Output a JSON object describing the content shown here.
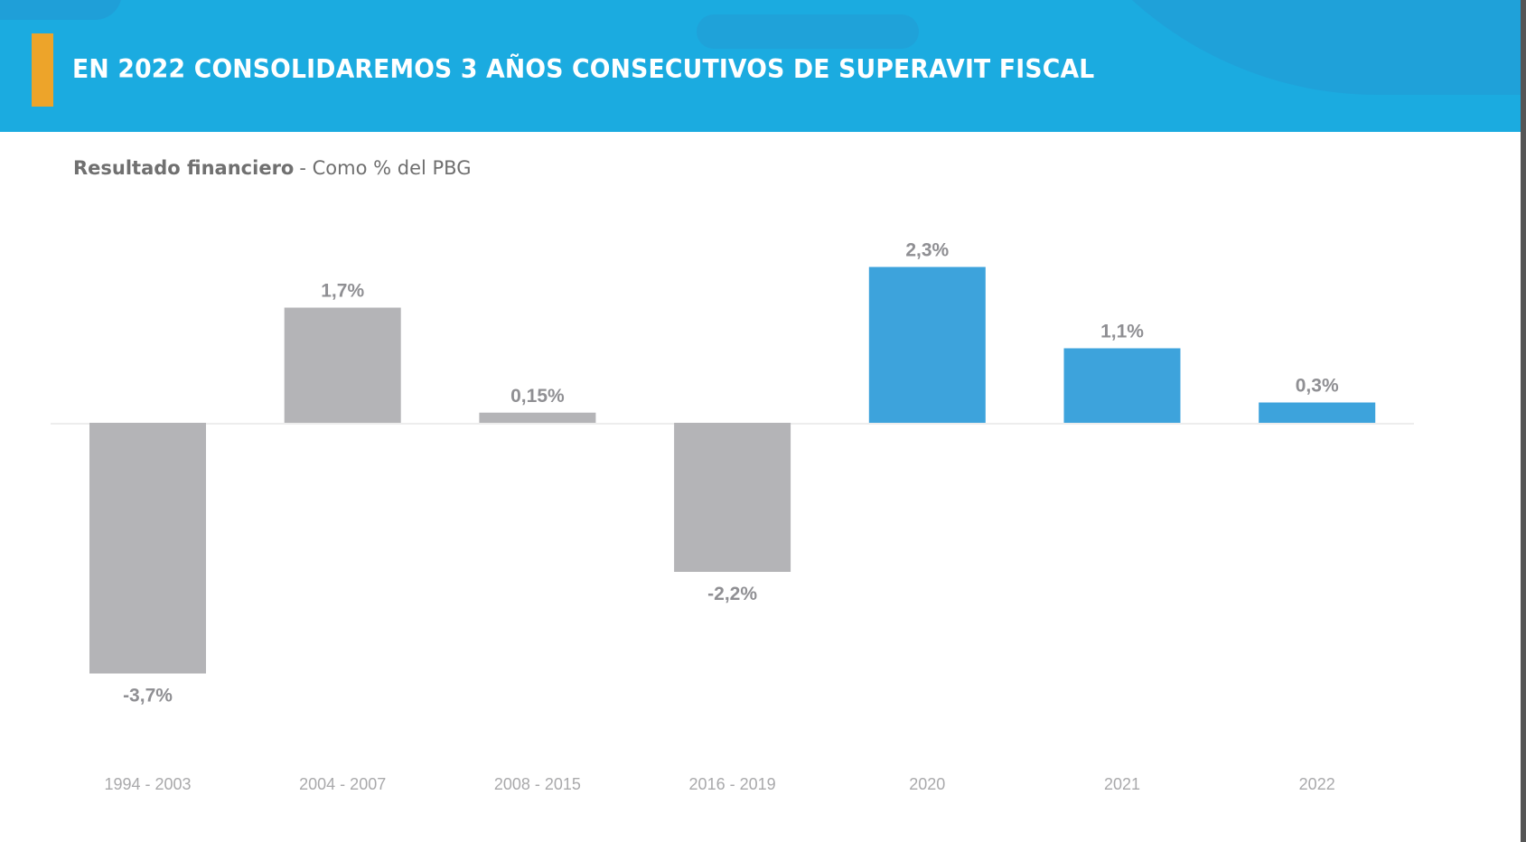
{
  "header": {
    "title": "EN 2022 CONSOLIDAREMOS 3 AÑOS CONSECUTIVOS DE SUPERAVIT FISCAL",
    "colors": {
      "background": "#1babe0",
      "accent": "#eda42a",
      "text": "#ffffff"
    }
  },
  "subtitle": {
    "bold": "Resultado financiero",
    "rest": "- Como % del PBG"
  },
  "chart_data": {
    "type": "bar",
    "title": "Resultado financiero - Como % del PBG",
    "xlabel": "",
    "ylabel": "",
    "grid": false,
    "legend": "none",
    "categories": [
      "1994 - 2003",
      "2004 - 2007",
      "2008 - 2015",
      "2016 - 2019",
      "2020",
      "2021",
      "2022"
    ],
    "values": [
      -3.7,
      1.7,
      0.15,
      -2.2,
      2.3,
      1.1,
      0.3
    ],
    "value_labels": [
      "-3,7%",
      "1,7%",
      "0,15%",
      "-2,2%",
      "2,3%",
      "1,1%",
      "0,3%"
    ],
    "bar_colors": [
      "#b4b4b7",
      "#b4b4b7",
      "#b4b4b7",
      "#b4b4b7",
      "#3da3dc",
      "#3da3dc",
      "#3da3dc"
    ],
    "ylim": [
      -4.0,
      3.0
    ]
  }
}
